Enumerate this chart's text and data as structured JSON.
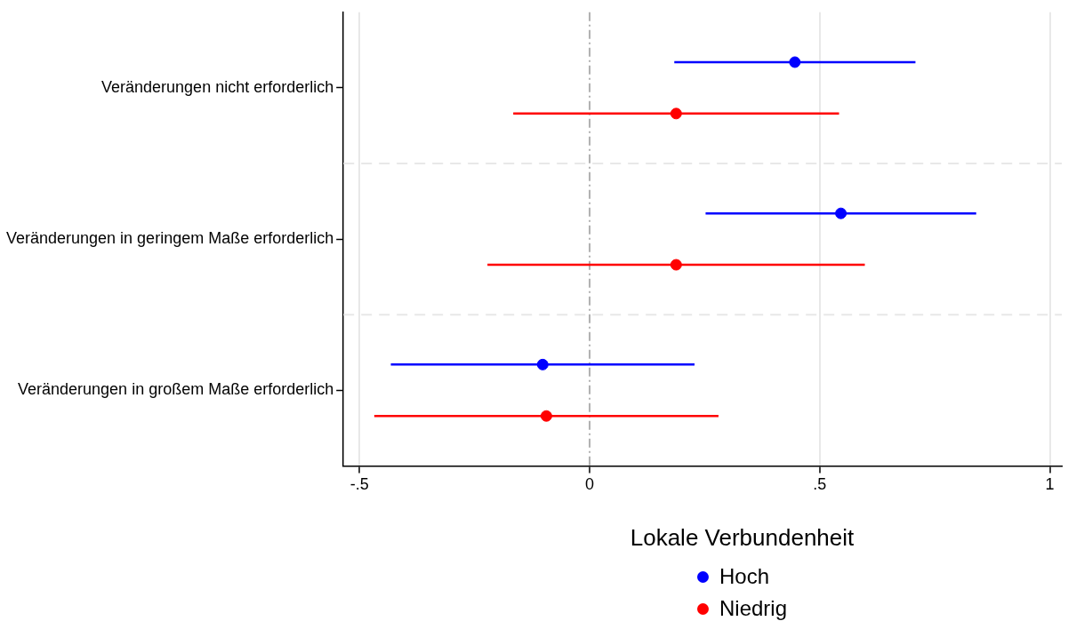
{
  "chart_data": {
    "type": "scatter",
    "categories": [
      "Veränderungen nicht erforderlich",
      "Veränderungen in geringem Maße erforderlich",
      "Veränderungen in großem Maße erforderlich"
    ],
    "series": [
      {
        "name": "Hoch",
        "color": "#0000ff",
        "values": [
          0.446,
          0.546,
          -0.102
        ],
        "errors": [
          0.262,
          0.294,
          0.33
        ]
      },
      {
        "name": "Niedrig",
        "color": "#ff0000",
        "values": [
          0.188,
          0.188,
          -0.094
        ],
        "errors": [
          0.354,
          0.41,
          0.374
        ]
      }
    ],
    "orientation": "horizontal",
    "xlim": [
      -0.535,
      1.026
    ],
    "xticks": [
      {
        "value": -0.5,
        "label": "-.5"
      },
      0,
      {
        "value": 0.5,
        "label": ".5"
      },
      1
    ],
    "ref_lines": [
      {
        "axis": "x",
        "value": 0,
        "color": "#b0b0b0",
        "line_style": "dashdot"
      }
    ],
    "grid": true,
    "legend": "bottom",
    "legend_title": "Lokale Verbundenheit",
    "marker": "circle"
  }
}
